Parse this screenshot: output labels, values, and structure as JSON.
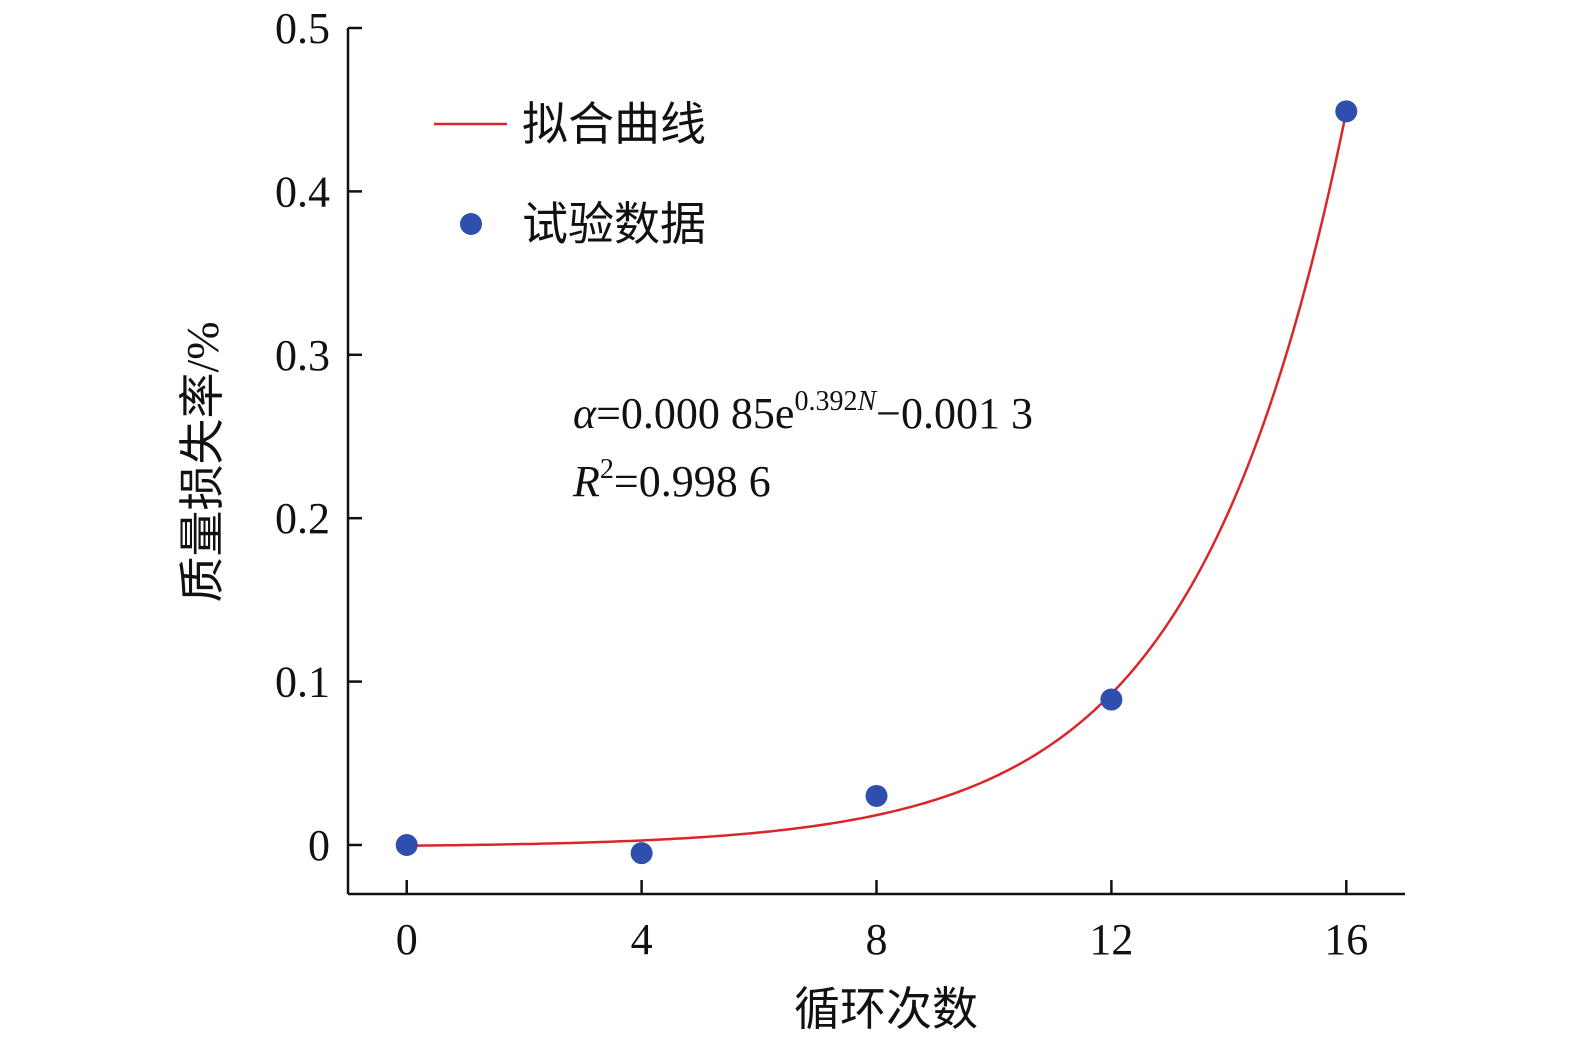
{
  "chart_data": {
    "type": "scatter",
    "xlabel": "循环次数",
    "ylabel": "质量损失率/%",
    "xlim": [
      -1,
      17
    ],
    "ylim": [
      -0.03,
      0.5
    ],
    "xticks": [
      "0",
      "4",
      "8",
      "12",
      "16"
    ],
    "yticks": [
      "0",
      "0.1",
      "0.2",
      "0.3",
      "0.4",
      "0.5"
    ],
    "legend_position": "top-left",
    "series": [
      {
        "name": "试验数据",
        "kind": "scatter",
        "color": "#2f4fae",
        "x": [
          0,
          4,
          8,
          12,
          16
        ],
        "y": [
          0.0,
          -0.005,
          0.03,
          0.089,
          0.449
        ]
      },
      {
        "name": "拟合曲线",
        "kind": "line",
        "color": "#d9262b",
        "model": {
          "a": 0.00085,
          "b": 0.392,
          "c": -0.0013,
          "x_from": 0,
          "x_to": 16
        }
      }
    ],
    "annotations": {
      "eq1_symbol": "α",
      "eq1_text": "=0.000 85e",
      "eq1_sup_num": "0.392",
      "eq1_sup_var": "N",
      "eq1_tail": "−0.001 3",
      "eq2_symbol": "R",
      "eq2_sup": "2",
      "eq2_text": "=0.998 6"
    }
  }
}
